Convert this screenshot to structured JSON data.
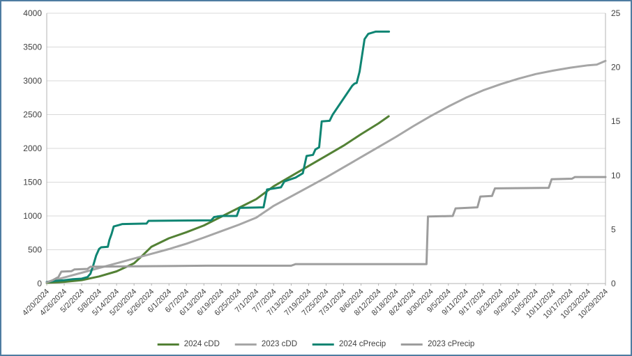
{
  "frame": {
    "border_color": "#4e7ca1",
    "background": "#ffffff",
    "grid_color": "#d9d9d9",
    "axis_color": "#b3b3b3",
    "label_color": "#404040",
    "tick_font_px": 11
  },
  "chart_data": {
    "type": "line",
    "title": "",
    "xlabel": "",
    "ylabel_left": "",
    "ylabel_right": "",
    "grid": true,
    "legend_position": "bottom",
    "x_unit": "days since 4/20/2024",
    "day_step": 6,
    "categories": [
      "4/20/2024",
      "4/26/2024",
      "5/2/2024",
      "5/8/2024",
      "5/14/2024",
      "5/20/2024",
      "5/26/2024",
      "6/1/2024",
      "6/7/2024",
      "6/13/2024",
      "6/19/2024",
      "6/25/2024",
      "7/1/2024",
      "7/7/2024",
      "7/13/2024",
      "7/19/2024",
      "7/25/2024",
      "7/31/2024",
      "8/6/2024",
      "8/12/2024",
      "8/18/2024",
      "8/24/2024",
      "8/30/2024",
      "9/5/2024",
      "9/11/2024",
      "9/17/2024",
      "9/23/2024",
      "9/29/2024",
      "10/5/2024",
      "10/11/2024",
      "10/17/2024",
      "10/23/2024",
      "10/29/2024"
    ],
    "axes": {
      "left": {
        "min": 0,
        "max": 4000,
        "step": 500
      },
      "right": {
        "min": 0,
        "max": 25,
        "step": 5
      }
    },
    "series": [
      {
        "name": "2024 cDD",
        "axis": "left",
        "color": "#538135",
        "points": [
          [
            0,
            10
          ],
          [
            6,
            25
          ],
          [
            12,
            50
          ],
          [
            18,
            105
          ],
          [
            24,
            180
          ],
          [
            30,
            300
          ],
          [
            33,
            420
          ],
          [
            36,
            545
          ],
          [
            42,
            670
          ],
          [
            48,
            760
          ],
          [
            54,
            860
          ],
          [
            60,
            990
          ],
          [
            66,
            1120
          ],
          [
            72,
            1250
          ],
          [
            78,
            1440
          ],
          [
            84,
            1590
          ],
          [
            90,
            1740
          ],
          [
            96,
            1890
          ],
          [
            102,
            2040
          ],
          [
            108,
            2210
          ],
          [
            114,
            2370
          ],
          [
            117.5,
            2475
          ]
        ]
      },
      {
        "name": "2023 cDD",
        "axis": "left",
        "color": "#a6a6a6",
        "points": [
          [
            0,
            20
          ],
          [
            6,
            90
          ],
          [
            12,
            160
          ],
          [
            18,
            230
          ],
          [
            24,
            300
          ],
          [
            30,
            370
          ],
          [
            36,
            440
          ],
          [
            42,
            510
          ],
          [
            48,
            590
          ],
          [
            54,
            680
          ],
          [
            60,
            775
          ],
          [
            66,
            870
          ],
          [
            72,
            975
          ],
          [
            78,
            1150
          ],
          [
            84,
            1290
          ],
          [
            90,
            1430
          ],
          [
            96,
            1570
          ],
          [
            102,
            1720
          ],
          [
            108,
            1870
          ],
          [
            114,
            2020
          ],
          [
            120,
            2170
          ],
          [
            126,
            2330
          ],
          [
            132,
            2480
          ],
          [
            138,
            2620
          ],
          [
            144,
            2750
          ],
          [
            150,
            2860
          ],
          [
            156,
            2950
          ],
          [
            162,
            3030
          ],
          [
            168,
            3100
          ],
          [
            174,
            3150
          ],
          [
            180,
            3195
          ],
          [
            186,
            3230
          ],
          [
            189,
            3240
          ],
          [
            192,
            3295
          ]
        ]
      },
      {
        "name": "2024 cPrecip",
        "axis": "right",
        "color": "#0f8573",
        "points": [
          [
            0,
            0.15
          ],
          [
            3,
            0.25
          ],
          [
            6,
            0.3
          ],
          [
            9,
            0.4
          ],
          [
            12,
            0.45
          ],
          [
            14,
            0.6
          ],
          [
            15,
            0.9
          ],
          [
            16,
            1.7
          ],
          [
            17,
            2.6
          ],
          [
            18,
            3.2
          ],
          [
            18.7,
            3.35
          ],
          [
            21,
            3.4
          ],
          [
            21.5,
            4.0
          ],
          [
            22.3,
            4.6
          ],
          [
            23,
            5.28
          ],
          [
            24.7,
            5.4
          ],
          [
            26,
            5.5
          ],
          [
            34.3,
            5.55
          ],
          [
            35,
            5.8
          ],
          [
            56.5,
            5.85
          ],
          [
            57.5,
            6.15
          ],
          [
            58.5,
            6.2
          ],
          [
            60,
            6.25
          ],
          [
            65.3,
            6.25
          ],
          [
            66.3,
            7.0
          ],
          [
            74.5,
            7.05
          ],
          [
            75.7,
            8.7
          ],
          [
            80.5,
            8.9
          ],
          [
            81.7,
            9.45
          ],
          [
            85.5,
            9.8
          ],
          [
            88,
            10.2
          ],
          [
            89.3,
            11.8
          ],
          [
            91.5,
            11.9
          ],
          [
            92.3,
            12.4
          ],
          [
            93.6,
            12.6
          ],
          [
            94.5,
            15.0
          ],
          [
            97.2,
            15.05
          ],
          [
            98.2,
            15.6
          ],
          [
            105,
            18.3
          ],
          [
            105.8,
            18.5
          ],
          [
            106.5,
            18.55
          ],
          [
            107.5,
            19.6
          ],
          [
            109.2,
            22.6
          ],
          [
            110.5,
            23.1
          ],
          [
            113,
            23.3
          ],
          [
            117.6,
            23.3
          ]
        ]
      },
      {
        "name": "2023 cPrecip",
        "axis": "right",
        "color": "#9d9d9d",
        "points": [
          [
            0,
            0.1
          ],
          [
            2,
            0.3
          ],
          [
            4,
            0.6
          ],
          [
            5,
            1.1
          ],
          [
            8.5,
            1.15
          ],
          [
            9.5,
            1.3
          ],
          [
            14,
            1.35
          ],
          [
            15,
            1.55
          ],
          [
            30,
            1.6
          ],
          [
            55,
            1.65
          ],
          [
            84,
            1.65
          ],
          [
            85.5,
            1.8
          ],
          [
            130.5,
            1.8
          ],
          [
            131,
            6.2
          ],
          [
            139.5,
            6.25
          ],
          [
            140.5,
            6.95
          ],
          [
            148,
            7.05
          ],
          [
            149,
            8.05
          ],
          [
            153,
            8.1
          ],
          [
            154,
            8.8
          ],
          [
            172.5,
            8.85
          ],
          [
            173.5,
            9.65
          ],
          [
            180.5,
            9.7
          ],
          [
            181.5,
            9.85
          ],
          [
            192,
            9.85
          ]
        ]
      }
    ]
  }
}
